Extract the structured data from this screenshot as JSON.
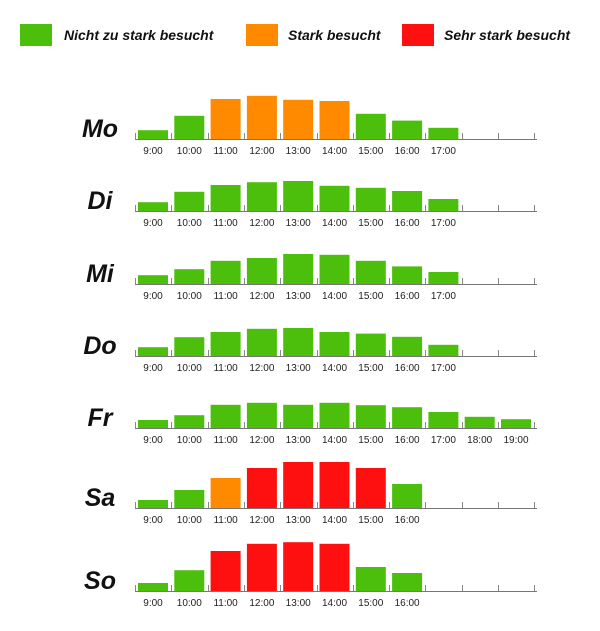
{
  "legend": [
    {
      "label": "Nicht zu stark besucht",
      "color": "#4cbf0c"
    },
    {
      "label": "Stark besucht",
      "color": "#ff8a00"
    },
    {
      "label": "Sehr stark besucht",
      "color": "#ff1010"
    }
  ],
  "chart_data": {
    "type": "bar",
    "categories": [
      "9:00",
      "10:00",
      "11:00",
      "12:00",
      "13:00",
      "14:00",
      "15:00",
      "16:00",
      "17:00",
      "18:00",
      "19:00"
    ],
    "level_colors": {
      "normal": "#4cbf0c",
      "stark": "#ff8a00",
      "sehr_stark": "#ff1010"
    },
    "days": [
      {
        "name": "Mo",
        "values": [
          22,
          58,
          100,
          108,
          98,
          95,
          63,
          46,
          28
        ],
        "levels": [
          "normal",
          "normal",
          "stark",
          "stark",
          "stark",
          "stark",
          "normal",
          "normal",
          "normal"
        ],
        "labels": [
          "9:00",
          "10:00",
          "11:00",
          "12:00",
          "13:00",
          "14:00",
          "15:00",
          "16:00",
          "17:00"
        ]
      },
      {
        "name": "Di",
        "values": [
          22,
          48,
          65,
          72,
          75,
          63,
          58,
          50,
          30
        ],
        "levels": [
          "normal",
          "normal",
          "normal",
          "normal",
          "normal",
          "normal",
          "normal",
          "normal",
          "normal"
        ],
        "labels": [
          "9:00",
          "10:00",
          "11:00",
          "12:00",
          "13:00",
          "14:00",
          "15:00",
          "16:00",
          "17:00"
        ]
      },
      {
        "name": "Mi",
        "values": [
          22,
          37,
          58,
          65,
          75,
          73,
          58,
          44,
          30
        ],
        "levels": [
          "normal",
          "normal",
          "normal",
          "normal",
          "normal",
          "normal",
          "normal",
          "normal",
          "normal"
        ],
        "labels": [
          "9:00",
          "10:00",
          "11:00",
          "12:00",
          "13:00",
          "14:00",
          "15:00",
          "16:00",
          "17:00"
        ]
      },
      {
        "name": "Do",
        "values": [
          22,
          47,
          60,
          68,
          70,
          60,
          56,
          48,
          28
        ],
        "levels": [
          "normal",
          "normal",
          "normal",
          "normal",
          "normal",
          "normal",
          "normal",
          "normal",
          "normal"
        ],
        "labels": [
          "9:00",
          "10:00",
          "11:00",
          "12:00",
          "13:00",
          "14:00",
          "15:00",
          "16:00",
          "17:00"
        ]
      },
      {
        "name": "Fr",
        "values": [
          20,
          32,
          58,
          63,
          58,
          63,
          57,
          52,
          40,
          28,
          22
        ],
        "levels": [
          "normal",
          "normal",
          "normal",
          "normal",
          "normal",
          "normal",
          "normal",
          "normal",
          "normal",
          "normal",
          "normal"
        ],
        "labels": [
          "9:00",
          "10:00",
          "11:00",
          "12:00",
          "13:00",
          "14:00",
          "15:00",
          "16:00",
          "17:00",
          "18:00",
          "19:00"
        ]
      },
      {
        "name": "Sa",
        "values": [
          20,
          45,
          75,
          100,
          115,
          115,
          100,
          60
        ],
        "levels": [
          "normal",
          "normal",
          "stark",
          "sehr_stark",
          "sehr_stark",
          "sehr_stark",
          "sehr_stark",
          "normal"
        ],
        "labels": [
          "9:00",
          "10:00",
          "11:00",
          "12:00",
          "13:00",
          "14:00",
          "15:00",
          "16:00"
        ]
      },
      {
        "name": "So",
        "values": [
          20,
          52,
          100,
          118,
          122,
          118,
          60,
          45
        ],
        "levels": [
          "normal",
          "normal",
          "sehr_stark",
          "sehr_stark",
          "sehr_stark",
          "sehr_stark",
          "normal",
          "normal"
        ],
        "labels": [
          "9:00",
          "10:00",
          "11:00",
          "12:00",
          "13:00",
          "14:00",
          "15:00",
          "16:00"
        ]
      }
    ]
  }
}
